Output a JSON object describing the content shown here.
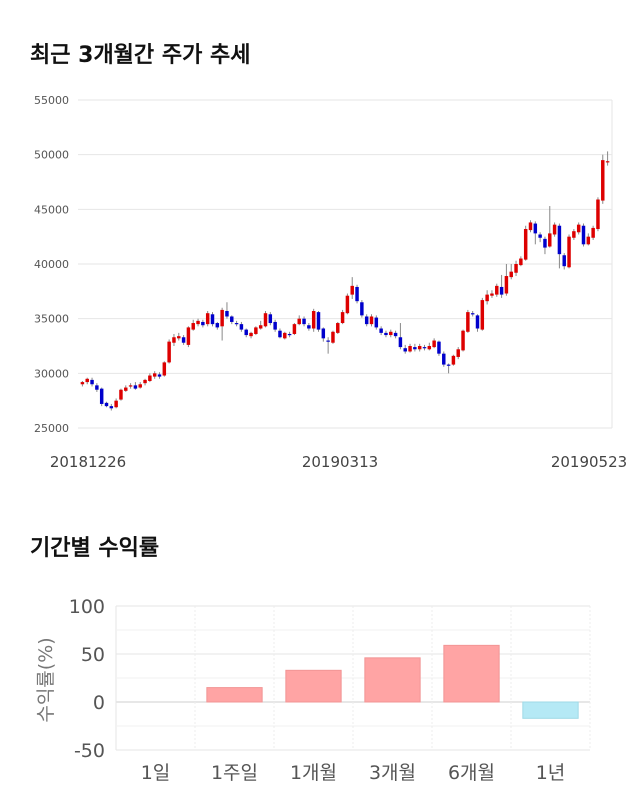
{
  "sections": {
    "price_title": "최근 3개월간 주가 추세",
    "returns_title": "기간별 수익률"
  },
  "chart_data": [
    {
      "type": "candlestick",
      "title": "최근 3개월간 주가 추세",
      "ylim": [
        25000,
        55000
      ],
      "yticks": [
        25000,
        30000,
        35000,
        40000,
        45000,
        50000,
        55000
      ],
      "xtick_labels": [
        "20181226",
        "20190313",
        "20190523"
      ],
      "grid": true,
      "colors": {
        "up": "#dd0000",
        "down": "#0000cc",
        "wick": "#888888"
      },
      "candles": [
        [
          29000,
          29200,
          28800,
          29300
        ],
        [
          29200,
          29500,
          29000,
          29600
        ],
        [
          29400,
          29000,
          28800,
          29600
        ],
        [
          28900,
          28500,
          28300,
          29100
        ],
        [
          28600,
          27200,
          27000,
          28700
        ],
        [
          27300,
          27000,
          26900,
          27400
        ],
        [
          27000,
          26800,
          26600,
          27200
        ],
        [
          26900,
          27500,
          26800,
          27700
        ],
        [
          27600,
          28500,
          27500,
          28600
        ],
        [
          28400,
          28700,
          28300,
          28900
        ],
        [
          28800,
          28900,
          28600,
          29100
        ],
        [
          28900,
          28600,
          28500,
          29200
        ],
        [
          28700,
          29000,
          28600,
          29200
        ],
        [
          29100,
          29400,
          28900,
          29500
        ],
        [
          29300,
          29800,
          29200,
          30000
        ],
        [
          29700,
          30000,
          29500,
          30200
        ],
        [
          29900,
          29700,
          29500,
          30100
        ],
        [
          29800,
          31000,
          29700,
          31100
        ],
        [
          31000,
          32900,
          30900,
          33100
        ],
        [
          32800,
          33300,
          32500,
          33600
        ],
        [
          33200,
          33400,
          33000,
          33700
        ],
        [
          33300,
          32800,
          32600,
          33500
        ],
        [
          32600,
          34200,
          32400,
          34300
        ],
        [
          34000,
          34600,
          33900,
          34900
        ],
        [
          34500,
          34800,
          34300,
          35000
        ],
        [
          34700,
          34400,
          34200,
          34900
        ],
        [
          34500,
          35500,
          34300,
          35700
        ],
        [
          35400,
          34500,
          34300,
          35600
        ],
        [
          34600,
          34200,
          34000,
          34700
        ],
        [
          34300,
          35800,
          33000,
          36000
        ],
        [
          35700,
          35200,
          35000,
          36500
        ],
        [
          35200,
          34700,
          34500,
          35300
        ],
        [
          34600,
          34500,
          34300,
          34800
        ],
        [
          34500,
          34000,
          33800,
          34700
        ],
        [
          34000,
          33500,
          33300,
          34100
        ],
        [
          33400,
          33700,
          33200,
          33800
        ],
        [
          33600,
          34200,
          33500,
          34300
        ],
        [
          34100,
          34400,
          34000,
          34800
        ],
        [
          34300,
          35500,
          34200,
          35700
        ],
        [
          35400,
          34600,
          34400,
          35600
        ],
        [
          34700,
          34000,
          33800,
          34900
        ],
        [
          33900,
          33300,
          33200,
          34100
        ],
        [
          33200,
          33700,
          33100,
          33800
        ],
        [
          33600,
          33500,
          33300,
          33800
        ],
        [
          33600,
          34500,
          33500,
          34600
        ],
        [
          34500,
          35000,
          34400,
          35300
        ],
        [
          35000,
          34500,
          34300,
          35200
        ],
        [
          34400,
          34100,
          33900,
          34600
        ],
        [
          34100,
          35700,
          33800,
          35900
        ],
        [
          35600,
          34000,
          33800,
          35700
        ],
        [
          34100,
          33200,
          32900,
          34200
        ],
        [
          33000,
          32900,
          31800,
          33300
        ],
        [
          32800,
          33800,
          32700,
          33900
        ],
        [
          33700,
          34600,
          33600,
          34700
        ],
        [
          34600,
          35600,
          34500,
          35800
        ],
        [
          35500,
          37100,
          35400,
          37300
        ],
        [
          37200,
          38000,
          36800,
          38800
        ],
        [
          37900,
          36600,
          36400,
          38100
        ],
        [
          36500,
          35300,
          35100,
          36700
        ],
        [
          35200,
          34500,
          34300,
          35400
        ],
        [
          34500,
          35200,
          34300,
          35400
        ],
        [
          35100,
          34200,
          34000,
          35300
        ],
        [
          34100,
          33700,
          33500,
          34300
        ],
        [
          33700,
          33500,
          33300,
          33900
        ],
        [
          33500,
          33800,
          33300,
          34000
        ],
        [
          33700,
          33400,
          33200,
          33900
        ],
        [
          33300,
          32400,
          32200,
          34600
        ],
        [
          32300,
          32000,
          31800,
          32600
        ],
        [
          32000,
          32500,
          31900,
          32700
        ],
        [
          32400,
          32200,
          32000,
          32700
        ],
        [
          32200,
          32500,
          32000,
          32700
        ],
        [
          32400,
          32300,
          32100,
          32600
        ],
        [
          32200,
          32500,
          32100,
          32800
        ],
        [
          32400,
          33000,
          32300,
          33200
        ],
        [
          32900,
          31800,
          31600,
          33000
        ],
        [
          31800,
          30800,
          30600,
          32000
        ],
        [
          30800,
          30700,
          30000,
          30900
        ],
        [
          30800,
          31600,
          30700,
          31700
        ],
        [
          31500,
          32200,
          31300,
          32400
        ],
        [
          32100,
          33900,
          32000,
          34000
        ],
        [
          33800,
          35600,
          33700,
          35800
        ],
        [
          35500,
          35400,
          35200,
          35700
        ],
        [
          35300,
          34100,
          33800,
          35400
        ],
        [
          34000,
          36700,
          33900,
          36900
        ],
        [
          36600,
          37200,
          36300,
          37600
        ],
        [
          37100,
          37300,
          36900,
          37600
        ],
        [
          37200,
          38000,
          37000,
          38200
        ],
        [
          37900,
          37200,
          36900,
          39000
        ],
        [
          37300,
          38900,
          37100,
          40000
        ],
        [
          38800,
          39300,
          38600,
          40000
        ],
        [
          39200,
          40000,
          38900,
          40300
        ],
        [
          39900,
          40500,
          39800,
          40700
        ],
        [
          40400,
          43200,
          40300,
          43500
        ],
        [
          43100,
          43800,
          42900,
          44000
        ],
        [
          43700,
          42800,
          41800,
          43900
        ],
        [
          42700,
          42400,
          42000,
          42900
        ],
        [
          42300,
          41500,
          40900,
          42500
        ],
        [
          41600,
          42800,
          41500,
          45300
        ],
        [
          42700,
          43600,
          42500,
          43800
        ],
        [
          43500,
          40900,
          39600,
          43700
        ],
        [
          40800,
          39800,
          39500,
          41000
        ],
        [
          39700,
          42500,
          39600,
          42700
        ],
        [
          42400,
          43000,
          42200,
          43200
        ],
        [
          42900,
          43600,
          42700,
          43800
        ],
        [
          43500,
          41800,
          41600,
          43700
        ],
        [
          41800,
          42500,
          41700,
          42800
        ],
        [
          42400,
          43300,
          42200,
          43500
        ],
        [
          43200,
          45900,
          43000,
          46100
        ],
        [
          45800,
          49500,
          45500,
          50000
        ],
        [
          49300,
          49400,
          49000,
          50300
        ]
      ]
    },
    {
      "type": "bar",
      "title": "기간별 수익률",
      "ylabel": "수익률(%)",
      "ylim": [
        -50,
        100
      ],
      "yticks": [
        -50,
        0,
        50,
        100
      ],
      "categories": [
        "1일",
        "1주일",
        "1개월",
        "3개월",
        "6개월",
        "1년"
      ],
      "values": [
        0,
        15,
        33,
        46,
        59,
        -17
      ],
      "colors": {
        "positive": "#ffa4a4",
        "negative": "#b5e9f5"
      },
      "grid": true
    }
  ]
}
